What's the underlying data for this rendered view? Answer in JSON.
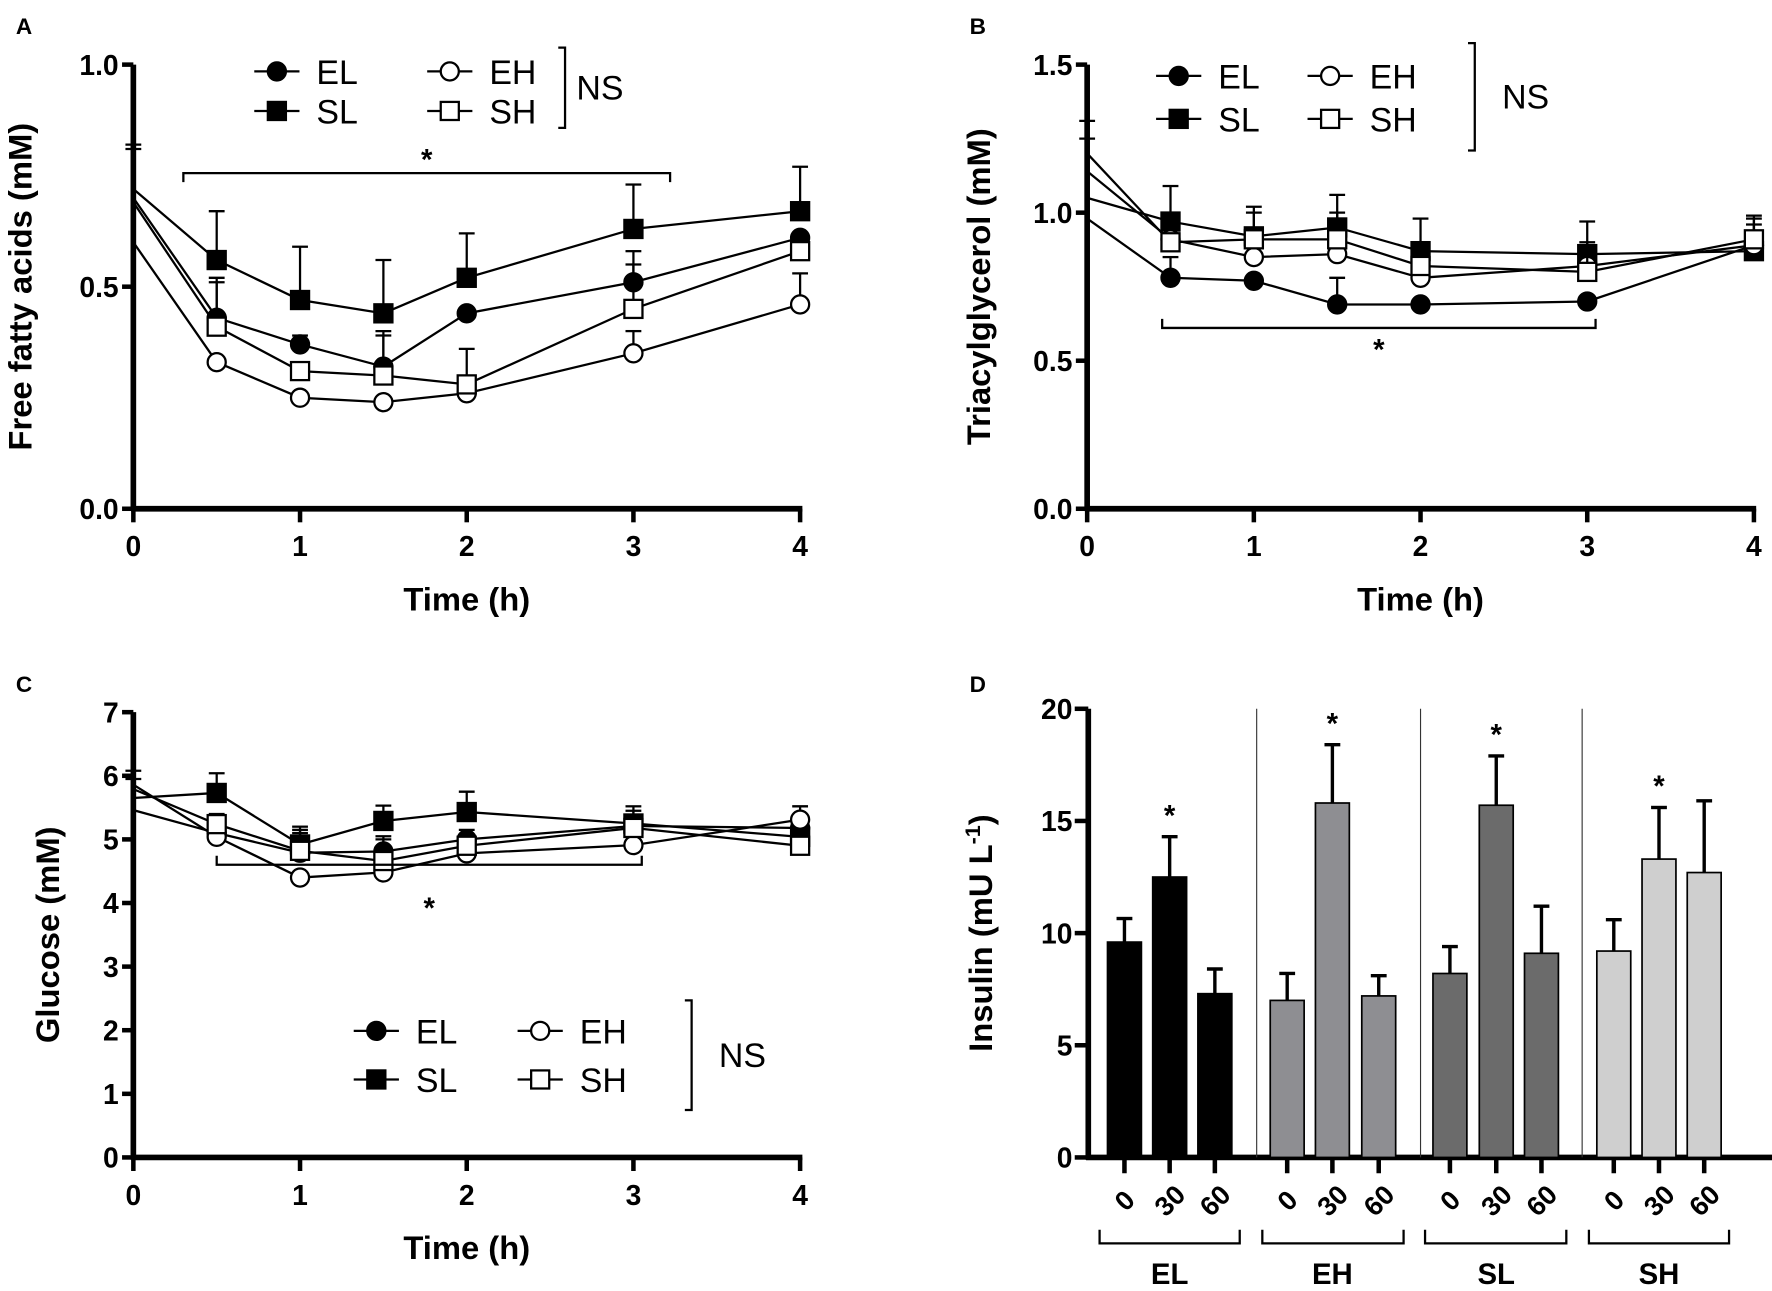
{
  "colors": {
    "EL": "#000000",
    "EH": "#8e8e92",
    "SL": "#6b6b6b",
    "SH": "#cfcfcf"
  },
  "legend": {
    "entries": [
      {
        "name": "EL",
        "marker": "filled-circle"
      },
      {
        "name": "EH",
        "marker": "open-circle"
      },
      {
        "name": "SL",
        "marker": "filled-square"
      },
      {
        "name": "SH",
        "marker": "open-square"
      }
    ],
    "ns": "NS"
  },
  "significance_mark": "*",
  "chart_data": [
    {
      "panel": "A",
      "type": "line",
      "xlabel": "Time (h)",
      "ylabel": "Free fatty acids (mM)",
      "xlim": [
        0,
        4
      ],
      "ylim": [
        0,
        1.0
      ],
      "xticks": [
        "0",
        "1",
        "2",
        "3",
        "4"
      ],
      "yticks": [
        "0.0",
        "0.5",
        "1.0"
      ],
      "x": [
        0,
        0.5,
        1,
        1.5,
        2,
        3,
        4
      ],
      "series": [
        {
          "name": "EL",
          "values": [
            0.7,
            0.43,
            0.37,
            0.32,
            0.44,
            0.51,
            0.61
          ],
          "err_upper": [
            null,
            0.52,
            0.39,
            0.4,
            null,
            0.58,
            null
          ]
        },
        {
          "name": "SL",
          "values": [
            0.72,
            0.56,
            0.47,
            0.44,
            0.52,
            0.63,
            0.67
          ],
          "err_upper": [
            0.82,
            0.67,
            0.59,
            0.56,
            0.62,
            0.73,
            0.77
          ]
        },
        {
          "name": "EH",
          "values": [
            0.6,
            0.33,
            0.25,
            0.24,
            0.26,
            0.35,
            0.46
          ],
          "err_upper": [
            null,
            null,
            null,
            null,
            null,
            0.4,
            0.53
          ]
        },
        {
          "name": "SH",
          "values": [
            0.69,
            0.41,
            0.31,
            0.3,
            0.28,
            0.45,
            0.58
          ],
          "err_upper": [
            0.81,
            0.51,
            null,
            0.39,
            0.36,
            0.55,
            null
          ]
        }
      ]
    },
    {
      "panel": "B",
      "type": "line",
      "xlabel": "Time (h)",
      "ylabel": "Triacylglycerol (mM)",
      "xlim": [
        0,
        4
      ],
      "ylim": [
        0,
        1.5
      ],
      "xticks": [
        "0",
        "1",
        "2",
        "3",
        "4"
      ],
      "yticks": [
        "0.0",
        "0.5",
        "1.0",
        "1.5"
      ],
      "x": [
        0,
        0.5,
        1,
        1.5,
        2,
        3,
        4
      ],
      "series": [
        {
          "name": "EL",
          "values": [
            0.98,
            0.78,
            0.77,
            0.69,
            0.69,
            0.7,
            0.89
          ],
          "err_upper": [
            null,
            0.85,
            null,
            0.78,
            null,
            null,
            null
          ]
        },
        {
          "name": "SL",
          "values": [
            1.05,
            0.97,
            0.92,
            0.95,
            0.87,
            0.86,
            0.87
          ],
          "err_upper": [
            null,
            1.09,
            1.02,
            1.06,
            0.98,
            0.97,
            0.99
          ]
        },
        {
          "name": "EH",
          "values": [
            1.14,
            0.91,
            0.85,
            0.86,
            0.78,
            0.82,
            0.89
          ],
          "err_upper": [
            1.25,
            null,
            1.0,
            null,
            null,
            null,
            0.98
          ]
        },
        {
          "name": "SH",
          "values": [
            1.2,
            0.9,
            0.91,
            0.91,
            0.82,
            0.8,
            0.91
          ],
          "err_upper": [
            1.31,
            null,
            null,
            1.0,
            null,
            0.9,
            0.96
          ]
        }
      ]
    },
    {
      "panel": "C",
      "type": "line",
      "xlabel": "Time (h)",
      "ylabel": "Glucose (mM)",
      "xlim": [
        0,
        4
      ],
      "ylim": [
        0,
        7
      ],
      "xticks": [
        "0",
        "1",
        "2",
        "3",
        "4"
      ],
      "yticks": [
        "0",
        "1",
        "2",
        "3",
        "4",
        "5",
        "6",
        "7"
      ],
      "x": [
        0,
        0.5,
        1,
        1.5,
        2,
        3,
        4
      ],
      "series": [
        {
          "name": "EL",
          "values": [
            5.46,
            5.1,
            4.79,
            4.81,
            5.0,
            5.21,
            5.18
          ],
          "err_upper": [
            null,
            null,
            5.1,
            5.05,
            5.15,
            null,
            null
          ]
        },
        {
          "name": "SL",
          "values": [
            5.65,
            5.73,
            4.92,
            5.29,
            5.43,
            5.25,
            5.04
          ],
          "err_upper": [
            null,
            6.04,
            5.2,
            5.53,
            5.75,
            5.52,
            5.52
          ]
        },
        {
          "name": "EH",
          "values": [
            5.86,
            5.04,
            4.4,
            4.48,
            4.78,
            4.91,
            5.31
          ],
          "err_upper": [
            6.08,
            null,
            null,
            null,
            null,
            null,
            null
          ]
        },
        {
          "name": "SH",
          "values": [
            5.79,
            5.24,
            4.82,
            4.66,
            4.9,
            5.18,
            4.9
          ],
          "err_upper": [
            5.95,
            5.4,
            5.15,
            5.0,
            null,
            5.45,
            null
          ]
        }
      ]
    },
    {
      "panel": "D",
      "type": "bar",
      "ylabel_main": "Insulin (mU L",
      "ylabel_sup": "-1",
      "ylabel_tail": ")",
      "ylim": [
        0,
        20
      ],
      "yticks": [
        "0",
        "5",
        "10",
        "15",
        "20"
      ],
      "categories": [
        "0",
        "30",
        "60"
      ],
      "groups": [
        {
          "name": "EL",
          "values": [
            9.6,
            12.5,
            7.3
          ],
          "err_upper": [
            10.65,
            14.3,
            8.4
          ],
          "significant": [
            false,
            true,
            false
          ]
        },
        {
          "name": "EH",
          "values": [
            7.0,
            15.8,
            7.2
          ],
          "err_upper": [
            8.2,
            18.4,
            8.1
          ],
          "significant": [
            false,
            true,
            false
          ]
        },
        {
          "name": "SL",
          "values": [
            8.2,
            15.7,
            9.1
          ],
          "err_upper": [
            9.4,
            17.9,
            11.2
          ],
          "significant": [
            false,
            true,
            false
          ]
        },
        {
          "name": "SH",
          "values": [
            9.2,
            13.3,
            12.7
          ],
          "err_upper": [
            10.6,
            15.6,
            15.9
          ],
          "significant": [
            false,
            true,
            false
          ]
        }
      ]
    }
  ]
}
